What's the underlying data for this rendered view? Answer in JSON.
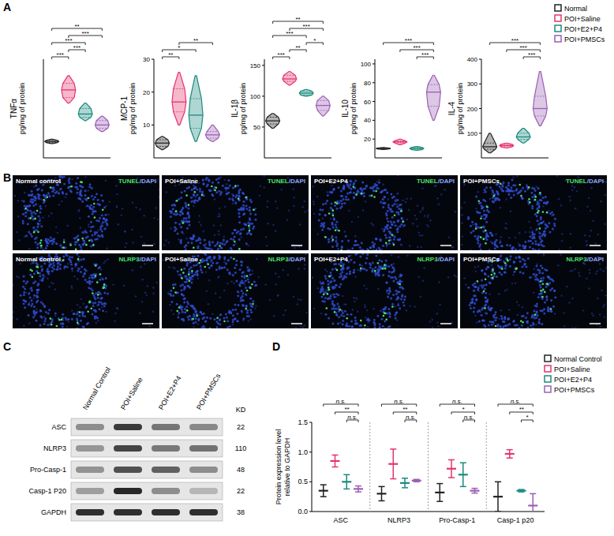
{
  "panel_labels": [
    "A",
    "B",
    "C",
    "D"
  ],
  "chart_data": [
    {
      "type": "violin",
      "title": "TNFα",
      "ylabel": "pg/mg of protein",
      "ylim": [
        0,
        90
      ],
      "tick_labels": false,
      "series": [
        {
          "color": "#222222",
          "min": 13,
          "q1": 14,
          "median": 15,
          "q3": 16,
          "max": 17
        },
        {
          "color": "#e6336e",
          "min": 50,
          "q1": 55,
          "median": 62,
          "q3": 68,
          "max": 75
        },
        {
          "color": "#1b8a7e",
          "min": 34,
          "q1": 37,
          "median": 40,
          "q3": 45,
          "max": 50
        },
        {
          "color": "#9b5fb5",
          "min": 24,
          "q1": 27,
          "median": 30,
          "q3": 34,
          "max": 38
        }
      ],
      "significance": [
        {
          "from": 0,
          "to": 1,
          "label": "***"
        },
        {
          "from": 1,
          "to": 2,
          "label": "***"
        },
        {
          "from": 0,
          "to": 2,
          "label": "***"
        },
        {
          "from": 1,
          "to": 3,
          "label": "***"
        },
        {
          "from": 0,
          "to": 3,
          "label": "**"
        }
      ]
    },
    {
      "type": "violin",
      "title": "MCP-1",
      "ylabel": "pg/mg of protein",
      "ylim": [
        0,
        30
      ],
      "yticks": [
        10,
        20,
        30
      ],
      "series": [
        {
          "color": "#222222",
          "min": 2.5,
          "q1": 3.5,
          "median": 4.5,
          "q3": 5.5,
          "max": 6.5
        },
        {
          "color": "#e6336e",
          "min": 10,
          "q1": 14,
          "median": 17,
          "q3": 21,
          "max": 26
        },
        {
          "color": "#1b8a7e",
          "min": 5,
          "q1": 9,
          "median": 13,
          "q3": 18,
          "max": 25
        },
        {
          "color": "#9b5fb5",
          "min": 5,
          "q1": 6,
          "median": 7,
          "q3": 8,
          "max": 10
        }
      ],
      "significance": [
        {
          "from": 0,
          "to": 1,
          "label": "**"
        },
        {
          "from": 0,
          "to": 2,
          "label": "*"
        },
        {
          "from": 1,
          "to": 3,
          "label": "**"
        }
      ]
    },
    {
      "type": "violin",
      "title": "IL-1β",
      "ylabel": "pg/mg of protein",
      "ylim": [
        0,
        160
      ],
      "yticks": [
        50,
        100,
        150
      ],
      "series": [
        {
          "color": "#222222",
          "min": 48,
          "q1": 55,
          "median": 60,
          "q3": 66,
          "max": 72
        },
        {
          "color": "#e6336e",
          "min": 118,
          "q1": 124,
          "median": 128,
          "q3": 134,
          "max": 140
        },
        {
          "color": "#1b8a7e",
          "min": 100,
          "q1": 102,
          "median": 105,
          "q3": 108,
          "max": 111
        },
        {
          "color": "#9b5fb5",
          "min": 68,
          "q1": 77,
          "median": 85,
          "q3": 93,
          "max": 100
        }
      ],
      "significance": [
        {
          "from": 0,
          "to": 1,
          "label": "***"
        },
        {
          "from": 1,
          "to": 2,
          "label": "**"
        },
        {
          "from": 2,
          "to": 3,
          "label": "*"
        },
        {
          "from": 0,
          "to": 2,
          "label": "***"
        },
        {
          "from": 1,
          "to": 3,
          "label": "***"
        },
        {
          "from": 0,
          "to": 3,
          "label": "**"
        }
      ]
    },
    {
      "type": "violin",
      "title": "IL-10",
      "ylabel": "pg/mg of protein",
      "ylim": [
        0,
        105
      ],
      "yticks": [
        20,
        40,
        60,
        80,
        100
      ],
      "series": [
        {
          "color": "#222222",
          "min": 9,
          "q1": 9.5,
          "median": 10,
          "q3": 10.5,
          "max": 11
        },
        {
          "color": "#e6336e",
          "min": 14,
          "q1": 16,
          "median": 17,
          "q3": 18,
          "max": 20
        },
        {
          "color": "#1b8a7e",
          "min": 8,
          "q1": 9,
          "median": 10,
          "q3": 11,
          "max": 12
        },
        {
          "color": "#9b5fb5",
          "min": 40,
          "q1": 55,
          "median": 70,
          "q3": 78,
          "max": 88
        }
      ],
      "significance": [
        {
          "from": 2,
          "to": 3,
          "label": "***"
        },
        {
          "from": 1,
          "to": 3,
          "label": "***"
        },
        {
          "from": 0,
          "to": 3,
          "label": "***"
        }
      ]
    },
    {
      "type": "violin",
      "title": "IL-4",
      "ylabel": "pg/mg of protein",
      "ylim": [
        0,
        400
      ],
      "yticks": [
        100,
        200,
        300,
        400
      ],
      "legend": "top-right",
      "series": [
        {
          "name": "Normal",
          "color": "#222222",
          "min": 20,
          "q1": 35,
          "median": 45,
          "q3": 60,
          "max": 100
        },
        {
          "name": "POI+Saline",
          "color": "#e6336e",
          "min": 40,
          "q1": 45,
          "median": 50,
          "q3": 55,
          "max": 60
        },
        {
          "name": "POI+E2+P4",
          "color": "#1b8a7e",
          "min": 60,
          "q1": 75,
          "median": 85,
          "q3": 100,
          "max": 120
        },
        {
          "name": "POI+PMSCs",
          "color": "#9b5fb5",
          "min": 130,
          "q1": 170,
          "median": 200,
          "q3": 250,
          "max": 350
        }
      ],
      "significance": [
        {
          "from": 2,
          "to": 3,
          "label": "***"
        },
        {
          "from": 1,
          "to": 3,
          "label": "***"
        },
        {
          "from": 0,
          "to": 3,
          "label": "***"
        }
      ]
    },
    {
      "type": "errorbar",
      "ylabel": "Protein expression level relative to GAPDH",
      "categories": [
        "ASC",
        "NLRP3",
        "Pro-Casp-1",
        "Casp-1 p20"
      ],
      "ylim": [
        0,
        1.5
      ],
      "yticks": [
        {
          "value": 0,
          "label": "0.0"
        },
        0.5,
        {
          "value": 1,
          "label": "1.0"
        },
        1.5
      ],
      "legend": "top-right",
      "series": [
        {
          "name": "Normal Control",
          "color": "#222222",
          "values": [
            0.35,
            0.3,
            0.32,
            0.25
          ],
          "errors": [
            0.1,
            0.12,
            0.15,
            0.25
          ]
        },
        {
          "name": "POI+Saline",
          "color": "#e6336e",
          "values": [
            0.85,
            0.8,
            0.72,
            0.97
          ],
          "errors": [
            0.1,
            0.25,
            0.15,
            0.07
          ]
        },
        {
          "name": "POI+E2+P4",
          "color": "#1b8a7e",
          "values": [
            0.5,
            0.48,
            0.62,
            0.35
          ],
          "errors": [
            0.12,
            0.08,
            0.2,
            0.02
          ]
        },
        {
          "name": "POI+PMSCs",
          "color": "#9b5fb5",
          "values": [
            0.38,
            0.52,
            0.35,
            0.1
          ],
          "errors": [
            0.05,
            0.02,
            0.04,
            0.2
          ]
        }
      ],
      "significance": [
        {
          "category": 0,
          "from": 2,
          "to": 3,
          "label": "n.s."
        },
        {
          "category": 0,
          "from": 1,
          "to": 3,
          "label": "**"
        },
        {
          "category": 0,
          "from": 0,
          "to": 3,
          "label": "n.s."
        },
        {
          "category": 1,
          "from": 2,
          "to": 3,
          "label": "n.s."
        },
        {
          "category": 1,
          "from": 1,
          "to": 3,
          "label": "**"
        },
        {
          "category": 1,
          "from": 0,
          "to": 3,
          "label": "n.s."
        },
        {
          "category": 2,
          "from": 2,
          "to": 3,
          "label": "n.s."
        },
        {
          "category": 2,
          "from": 1,
          "to": 3,
          "label": "*"
        },
        {
          "category": 2,
          "from": 0,
          "to": 3,
          "label": "n.s."
        },
        {
          "category": 3,
          "from": 2,
          "to": 3,
          "label": "*"
        },
        {
          "category": 3,
          "from": 1,
          "to": 3,
          "label": "**"
        },
        {
          "category": 3,
          "from": 0,
          "to": 3,
          "label": "n.s."
        }
      ]
    }
  ],
  "microscopy": {
    "groups": [
      "Normal control",
      "POI+Saline",
      "POI+E2+P4",
      "POI+PMSCs"
    ],
    "stains": [
      "TUNEL/DAPI",
      "NLRP3/DAPI"
    ]
  },
  "western_blot": {
    "lanes": [
      "Normal Control",
      "POI+Saline",
      "POI+E2+P4",
      "POI+PMSCs"
    ],
    "unit": "KD",
    "rows": [
      {
        "protein": "ASC",
        "kd": 22
      },
      {
        "protein": "NLRP3",
        "kd": 110
      },
      {
        "protein": "Pro-Casp-1",
        "kd": 48
      },
      {
        "protein": "Casp-1 P20",
        "kd": 22
      },
      {
        "protein": "GAPDH",
        "kd": 38
      }
    ]
  }
}
